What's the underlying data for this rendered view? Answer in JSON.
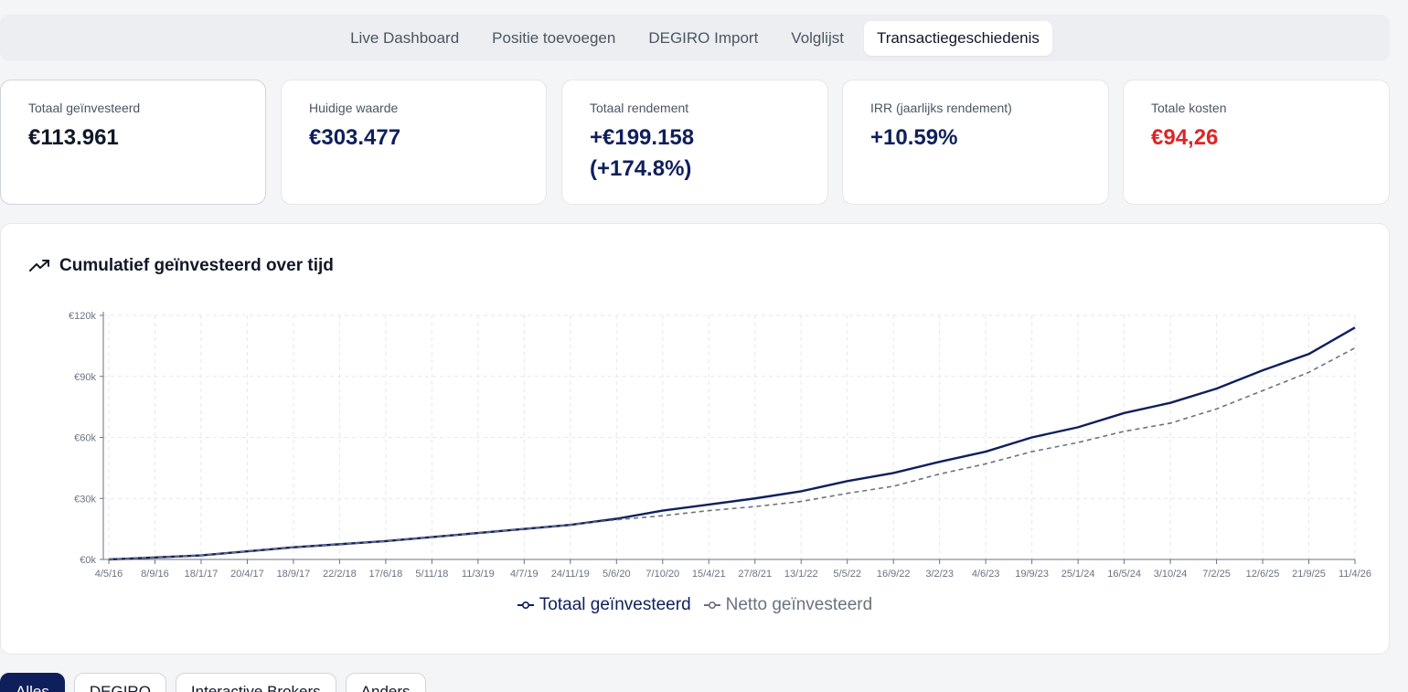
{
  "tabs": [
    {
      "label": "Live Dashboard",
      "active": false
    },
    {
      "label": "Positie toevoegen",
      "active": false
    },
    {
      "label": "DEGIRO Import",
      "active": false
    },
    {
      "label": "Volglijst",
      "active": false
    },
    {
      "label": "Transactiegeschiedenis",
      "active": true
    }
  ],
  "stats": [
    {
      "label": "Totaal geïnvesteerd",
      "value": "€113.961"
    },
    {
      "label": "Huidige waarde",
      "value": "€303.477"
    },
    {
      "label": "Totaal rendement",
      "value": "+€199.158 (+174.8%)"
    },
    {
      "label": "IRR (jaarlijks rendement)",
      "value": "+10.59%"
    },
    {
      "label": "Totale kosten",
      "value": "€94,26"
    }
  ],
  "colors": {
    "navy": "#0f1f5c",
    "gray": "#6b7280",
    "red": "#dc2626"
  },
  "chart_title": "Cumulatief geïnvesteerd over tijd",
  "chart_icon": "trending-up-icon",
  "chart_data": {
    "type": "line",
    "title": "Cumulatief geïnvesteerd over tijd",
    "y_ticks": [
      "€0k",
      "€30k",
      "€60k",
      "€90k",
      "€120k"
    ],
    "ylim": [
      0,
      120000
    ],
    "x_ticks": [
      "4/5/16",
      "8/9/16",
      "18/1/17",
      "20/4/17",
      "18/9/17",
      "22/2/18",
      "17/6/18",
      "5/11/18",
      "11/3/19",
      "4/7/19",
      "24/11/19",
      "5/6/20",
      "7/10/20",
      "15/4/21",
      "27/8/21",
      "13/1/22",
      "5/5/22",
      "16/9/22",
      "3/2/23",
      "4/6/23",
      "19/9/23",
      "25/1/24",
      "16/5/24",
      "3/10/24",
      "7/2/25",
      "12/6/25",
      "21/9/25",
      "11/4/26"
    ],
    "x": [
      "4/5/16",
      "18/1/17",
      "18/9/17",
      "17/6/18",
      "11/3/19",
      "24/11/19",
      "5/6/20",
      "7/10/20",
      "15/4/21",
      "27/8/21",
      "13/1/22",
      "5/5/22",
      "16/9/22",
      "3/2/23",
      "4/6/23",
      "19/9/23",
      "25/1/24",
      "16/5/24",
      "3/10/24",
      "7/2/25",
      "12/6/25",
      "21/9/25",
      "11/4/26"
    ],
    "grid": true,
    "legend_position": "bottom",
    "series": [
      {
        "name": "Totaal geïnvesteerd",
        "color": "#0f1f5c",
        "style": "solid",
        "values": [
          0,
          2000,
          6000,
          9000,
          13000,
          17000,
          20000,
          24000,
          27000,
          30000,
          33500,
          38500,
          42500,
          48000,
          53000,
          60000,
          65000,
          72000,
          77000,
          84000,
          93000,
          101000,
          114000
        ]
      },
      {
        "name": "Netto geïnvesteerd",
        "color": "#6b7280",
        "style": "dashed",
        "values": [
          0,
          2000,
          6000,
          9000,
          13000,
          17000,
          19500,
          21500,
          24000,
          26000,
          28500,
          32500,
          36000,
          42000,
          47000,
          53000,
          57500,
          63000,
          67000,
          74000,
          83000,
          92000,
          104000
        ]
      }
    ]
  },
  "filters": [
    {
      "label": "Alles",
      "active": true
    },
    {
      "label": "DEGIRO",
      "active": false
    },
    {
      "label": "Interactive Brokers",
      "active": false
    },
    {
      "label": "Anders",
      "active": false
    }
  ]
}
